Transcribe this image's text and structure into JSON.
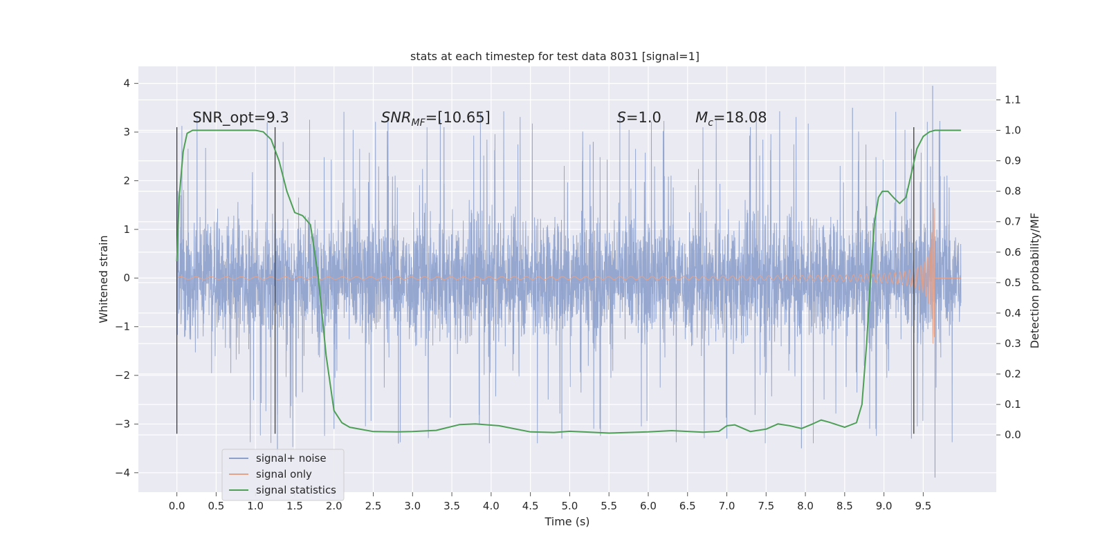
{
  "chart_data": {
    "type": "line",
    "title": "stats at each timestep for test data 8031 [signal=1]",
    "xlabel": "Time (s)",
    "ylabel": "Whitened strain",
    "y2label": "Detection probability/MF",
    "xlim": [
      -0.49,
      10.43
    ],
    "ylim": [
      -4.4,
      4.35
    ],
    "y2lim": [
      -0.188,
      1.21
    ],
    "x_ticks": [
      0.0,
      0.5,
      1.0,
      1.5,
      2.0,
      2.5,
      3.0,
      3.5,
      4.0,
      4.5,
      5.0,
      5.5,
      6.0,
      6.5,
      7.0,
      7.5,
      8.0,
      8.5,
      9.0,
      9.5
    ],
    "x_tick_labels": [
      "0.0",
      "0.5",
      "1.0",
      "1.5",
      "2.0",
      "2.5",
      "3.0",
      "3.5",
      "4.0",
      "4.5",
      "5.0",
      "5.5",
      "6.0",
      "6.5",
      "7.0",
      "7.5",
      "8.0",
      "8.5",
      "9.0",
      "9.5"
    ],
    "y_ticks": [
      -4,
      -3,
      -2,
      -1,
      0,
      1,
      2,
      3,
      4
    ],
    "y_tick_labels": [
      "−4",
      "−3",
      "−2",
      "−1",
      "0",
      "1",
      "2",
      "3",
      "4"
    ],
    "y2_ticks": [
      0.0,
      0.1,
      0.2,
      0.3,
      0.4,
      0.5,
      0.6,
      0.7,
      0.8,
      0.9,
      1.0,
      1.1
    ],
    "y2_tick_labels": [
      "0.0",
      "0.1",
      "0.2",
      "0.3",
      "0.4",
      "0.5",
      "0.6",
      "0.7",
      "0.8",
      "0.9",
      "1.0",
      "1.1"
    ],
    "grid": true,
    "legend_position": "lower-left",
    "series": [
      {
        "name": "signal+ noise",
        "color": "#8da0cb",
        "axis": "left",
        "x_range": [
          0.0,
          9.98
        ],
        "envelope_core": 1.3,
        "envelope_peak_max": 3.9,
        "envelope_peak_min": -4.0
      },
      {
        "name": "signal only",
        "color": "#e5a288",
        "axis": "left",
        "x_range": [
          0.0,
          9.65
        ],
        "start_amplitude": 0.02,
        "end_amplitude": 1.7,
        "chirp_end_time": 9.65
      },
      {
        "name": "signal statistics",
        "color": "#4c9f55",
        "axis": "right",
        "x": [
          0.0,
          0.03,
          0.08,
          0.13,
          0.2,
          0.3,
          0.5,
          0.8,
          1.0,
          1.1,
          1.2,
          1.3,
          1.4,
          1.5,
          1.6,
          1.7,
          1.8,
          1.9,
          2.0,
          2.1,
          2.2,
          2.5,
          2.8,
          3.0,
          3.3,
          3.6,
          3.8,
          4.1,
          4.5,
          4.8,
          5.0,
          5.5,
          6.0,
          6.3,
          6.7,
          6.9,
          7.0,
          7.1,
          7.3,
          7.5,
          7.65,
          7.8,
          7.95,
          8.1,
          8.2,
          8.3,
          8.5,
          8.65,
          8.72,
          8.78,
          8.83,
          8.88,
          8.93,
          8.98,
          9.05,
          9.12,
          9.2,
          9.28,
          9.35,
          9.42,
          9.5,
          9.58,
          9.65,
          9.75,
          9.85,
          9.98
        ],
        "values": [
          0.57,
          0.78,
          0.93,
          0.99,
          1.0,
          1.0,
          1.0,
          1.0,
          1.0,
          0.995,
          0.97,
          0.9,
          0.8,
          0.73,
          0.72,
          0.69,
          0.52,
          0.26,
          0.08,
          0.04,
          0.025,
          0.011,
          0.01,
          0.011,
          0.015,
          0.034,
          0.036,
          0.03,
          0.01,
          0.008,
          0.012,
          0.006,
          0.01,
          0.014,
          0.009,
          0.012,
          0.03,
          0.033,
          0.011,
          0.019,
          0.036,
          0.03,
          0.021,
          0.037,
          0.049,
          0.042,
          0.025,
          0.04,
          0.1,
          0.3,
          0.52,
          0.7,
          0.78,
          0.8,
          0.8,
          0.78,
          0.76,
          0.78,
          0.86,
          0.94,
          0.98,
          0.995,
          1.0,
          1.0,
          1.0,
          1.0
        ]
      }
    ],
    "vlines": [
      {
        "x": 0.0,
        "y_from": -3.2,
        "y_to": 3.1
      },
      {
        "x": 1.25,
        "y_from": -3.2,
        "y_to": 3.1
      },
      {
        "x": 9.38,
        "y_from": -3.2,
        "y_to": 3.1
      }
    ],
    "annotations": [
      {
        "name": "snr-opt",
        "text": "SNR_opt=9.3",
        "x": 0.2,
        "y": 3.2,
        "italic": false
      },
      {
        "name": "snr-mf",
        "text": "SNR",
        "sub": "MF",
        "suffix": "=[10.65]",
        "x": 2.6,
        "y": 3.2,
        "italic": true
      },
      {
        "name": "s-value",
        "text": "S",
        "suffix": "=1.0",
        "x": 5.6,
        "y": 3.2,
        "italic": true
      },
      {
        "name": "chirp-mass",
        "text": "M",
        "sub": "c",
        "suffix": "=18.08",
        "x": 6.6,
        "y": 3.2,
        "italic": true
      }
    ]
  }
}
